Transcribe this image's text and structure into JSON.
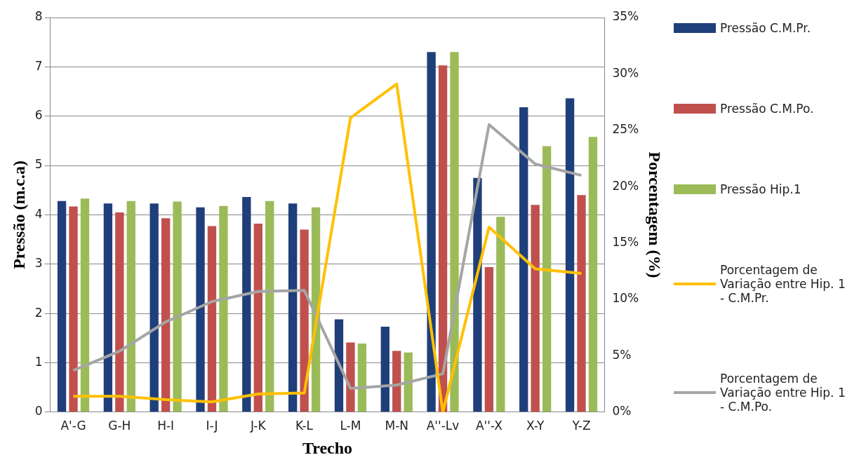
{
  "chart_data": {
    "type": "bar",
    "xlabel": "Trecho",
    "ylabel": "Pressão (m.c.a)",
    "y2label": "Porcentagem (%)",
    "categories": [
      "A'-G",
      "G-H",
      "H-I",
      "I-J",
      "J-K",
      "K-L",
      "L-M",
      "M-N",
      "A''-Lv",
      "A''-X",
      "X-Y",
      "Y-Z"
    ],
    "series": [
      {
        "name": "Pressão C.M.Pr.",
        "color": "#1f3f7a",
        "values": [
          4.28,
          4.23,
          4.23,
          4.15,
          4.36,
          4.23,
          1.88,
          1.73,
          7.3,
          4.75,
          6.18,
          6.36
        ]
      },
      {
        "name": "Pressão C.M.Po.",
        "color": "#c0504d",
        "values": [
          4.17,
          4.05,
          3.93,
          3.77,
          3.82,
          3.7,
          1.41,
          1.24,
          7.03,
          2.94,
          4.2,
          4.4
        ]
      },
      {
        "name": "Pressão Hip.1",
        "color": "#9bbb59",
        "values": [
          4.33,
          4.28,
          4.27,
          4.18,
          4.28,
          4.15,
          1.39,
          1.21,
          7.3,
          3.96,
          5.39,
          5.58
        ]
      },
      {
        "name": "Porcentagem de Variação entre Hip. 1 - C.M.Pr.",
        "type": "line",
        "axis": "y2",
        "color": "#ffc000",
        "values": [
          1.4,
          1.4,
          1.1,
          0.9,
          1.6,
          1.7,
          26.1,
          29.1,
          0,
          16.4,
          12.7,
          12.3
        ]
      },
      {
        "name": "Porcentagem de Variação entre Hip. 1 - C.M.Po.",
        "type": "line",
        "axis": "y2",
        "color": "#a5a5a5",
        "values": [
          3.7,
          5.4,
          8.0,
          9.8,
          10.7,
          10.8,
          2.1,
          2.4,
          3.4,
          25.5,
          22.0,
          21.0
        ]
      }
    ],
    "ylim": [
      0,
      8
    ],
    "yticks": [
      0,
      1,
      2,
      3,
      4,
      5,
      6,
      7,
      8
    ],
    "y2lim": [
      0,
      35
    ],
    "y2ticks": [
      {
        "value": 0,
        "label": "0%"
      },
      {
        "value": 5,
        "label": "5%"
      },
      {
        "value": 10,
        "label": "10%"
      },
      {
        "value": 15,
        "label": "15%"
      },
      {
        "value": 20,
        "label": "20%"
      },
      {
        "value": 25,
        "label": "25%"
      },
      {
        "value": 30,
        "label": "30%"
      },
      {
        "value": 35,
        "label": "35%"
      }
    ],
    "grid": "y",
    "legend": "right",
    "marker": "none"
  }
}
